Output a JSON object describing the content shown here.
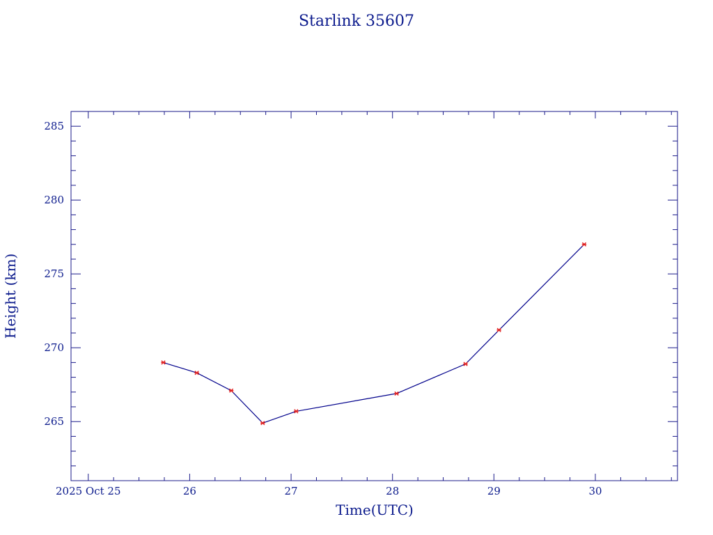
{
  "chart_data": {
    "type": "line",
    "title": "Starlink 35607",
    "xlabel": "Time(UTC)",
    "ylabel": "Height (km)",
    "x_axis": {
      "unit": "days",
      "range": [
        24.83,
        30.81
      ],
      "major_ticks": [
        {
          "value": 25,
          "label": "2025 Oct 25"
        },
        {
          "value": 26,
          "label": "26"
        },
        {
          "value": 27,
          "label": "27"
        },
        {
          "value": 28,
          "label": "28"
        },
        {
          "value": 29,
          "label": "29"
        },
        {
          "value": 30,
          "label": "30"
        }
      ],
      "minor_step": 0.25
    },
    "y_axis": {
      "range": [
        261.0,
        286.0
      ],
      "major_ticks": [
        {
          "value": 265,
          "label": "265"
        },
        {
          "value": 270,
          "label": "270"
        },
        {
          "value": 275,
          "label": "275"
        },
        {
          "value": 280,
          "label": "280"
        },
        {
          "value": 285,
          "label": "285"
        }
      ],
      "minor_step": 1
    },
    "grid": false,
    "legend": "none",
    "colors": {
      "line": "#00008b",
      "points": "#e02020",
      "text": "#0b1a8c",
      "axes": "#1a1a8a"
    },
    "series": [
      {
        "x": [
          25.74,
          26.07,
          26.41,
          26.72,
          27.05,
          28.04,
          28.72,
          29.05,
          29.89
        ],
        "y": [
          269.0,
          268.3,
          267.1,
          264.9,
          265.7,
          266.9,
          268.9,
          271.2,
          277.0
        ]
      }
    ]
  }
}
